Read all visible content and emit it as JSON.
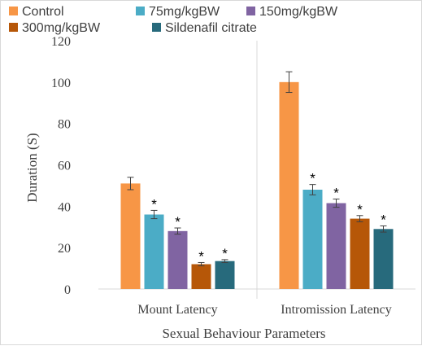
{
  "chart_data": {
    "type": "bar",
    "title": "",
    "xlabel": "Sexual Behaviour Parameters",
    "ylabel": "Duration (S)",
    "ylim": [
      0,
      120
    ],
    "yticks": [
      0,
      20,
      40,
      60,
      80,
      100,
      120
    ],
    "grid": false,
    "legend_position": "top",
    "categories": [
      "Mount Latency",
      "Intromission Latency"
    ],
    "series": [
      {
        "name": "Control",
        "color": "#F79646",
        "values": [
          51,
          100
        ],
        "errors": [
          3,
          5
        ],
        "significant": [
          false,
          false
        ]
      },
      {
        "name": "75mg/kgBW",
        "color": "#4BACC6",
        "values": [
          36,
          48
        ],
        "errors": [
          2,
          2.5
        ],
        "significant": [
          true,
          true
        ]
      },
      {
        "name": "150mg/kgBW",
        "color": "#8064A2",
        "values": [
          28,
          41.5
        ],
        "errors": [
          1.5,
          2
        ],
        "significant": [
          true,
          true
        ]
      },
      {
        "name": "300mg/kgBW",
        "color": "#B65708",
        "values": [
          12,
          34
        ],
        "errors": [
          0.8,
          1.5
        ],
        "significant": [
          true,
          true
        ]
      },
      {
        "name": "Sildenafil citrate",
        "color": "#276A7C",
        "values": [
          13.5,
          29
        ],
        "errors": [
          0.7,
          1.5
        ],
        "significant": [
          true,
          true
        ]
      }
    ],
    "significance_marker": "*"
  }
}
